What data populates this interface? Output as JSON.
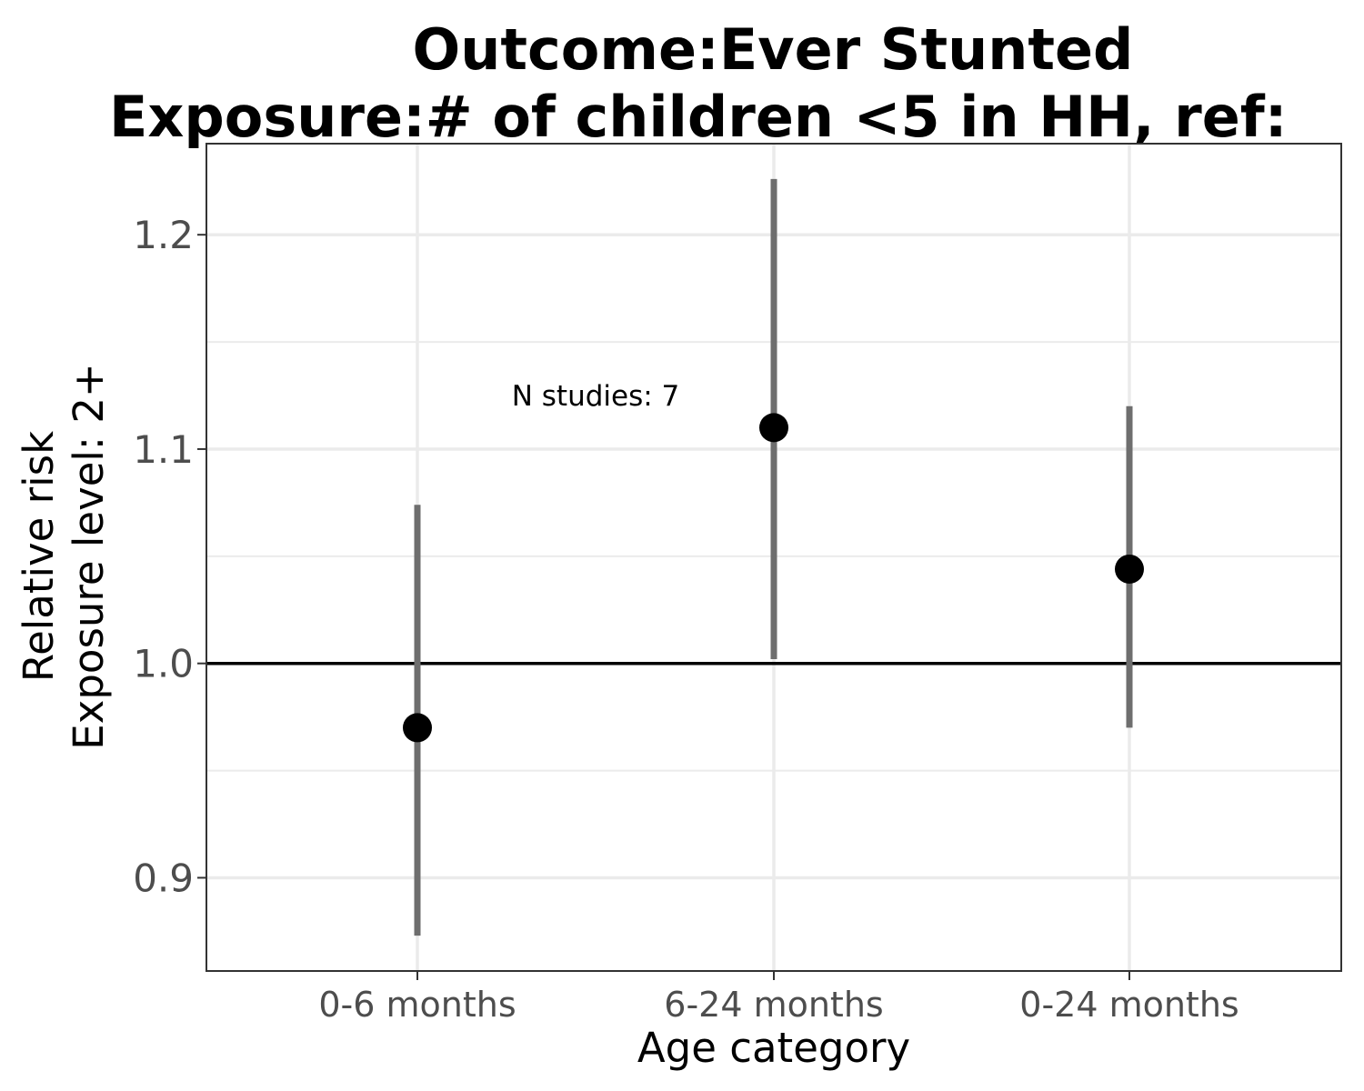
{
  "chart_data": {
    "type": "scatter",
    "title_lines": [
      "Outcome:Ever Stunted",
      "Exposure:# of children <5 in HH, ref:"
    ],
    "xlabel": "Age category",
    "ylabel_lines": [
      "Relative risk",
      "Exposure level: 2+"
    ],
    "categories": [
      "0-6 months",
      "6-24 months",
      "0-24 months"
    ],
    "estimates": [
      0.97,
      1.11,
      1.044
    ],
    "ci_lower": [
      0.873,
      1.002,
      0.97
    ],
    "ci_upper": [
      1.074,
      1.226,
      1.12
    ],
    "ylim": [
      0.8565,
      1.2425
    ],
    "y_ticks": [
      {
        "value": 0.9,
        "label": "0.9"
      },
      {
        "value": 1.0,
        "label": "1.0"
      },
      {
        "value": 1.1,
        "label": "1.1"
      },
      {
        "value": 1.2,
        "label": "1.2"
      }
    ],
    "y_minor_gridlines": [
      0.95,
      1.05,
      1.15
    ],
    "reference_line": 1.0,
    "annotation": {
      "text": "N studies: 7",
      "x_between": [
        "0-6 months",
        "6-24 months"
      ],
      "y": 1.125
    },
    "grid": true,
    "legend": "none",
    "colors": {
      "point": "#000000",
      "errorbar": "#6e6e6e",
      "reference_line": "#000000",
      "grid": "#ebebeb",
      "panel_border": "#333333"
    }
  }
}
